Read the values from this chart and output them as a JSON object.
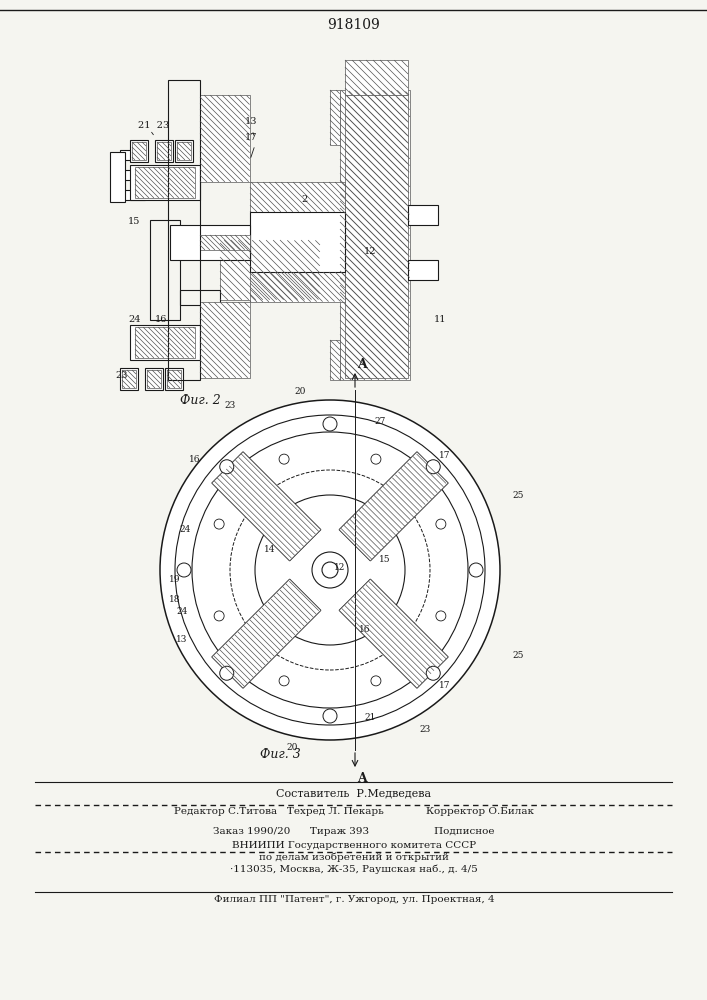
{
  "title_number": "918109",
  "fig2_label": "Фиг. 2",
  "fig3_label": "Фиг. 3",
  "fig2_numbers": [
    "21",
    "23",
    "13",
    "17",
    "15",
    "24",
    "16",
    "23",
    "2",
    "12",
    "11"
  ],
  "fig3_numbers": [
    "16",
    "23",
    "20",
    "27",
    "17",
    "25",
    "24",
    "19",
    "14",
    "15",
    "13",
    "18",
    "12",
    "16",
    "20",
    "21",
    "23",
    "24",
    "25",
    "A",
    "A"
  ],
  "bottom_text": [
    "                     Составитель  Р.Медведева",
    "Редактор С.Титова   Техред Л. Пекарь             Корректор О.Билак",
    "Заказ 1990/20      Тираж 393                    Подписное",
    "          ВНИИПИ Государственного комитета СССР",
    "             по делам изобретений и открытий",
    "          ·113035, Москва, Ж-35, Раушская наб., д. 4/5",
    "      Филиал ППП \"Патент\", г. Ужгород, ул. Проектная, 4"
  ],
  "bg_color": "#f5f5f0",
  "line_color": "#1a1a1a",
  "hatch_color": "#333333"
}
